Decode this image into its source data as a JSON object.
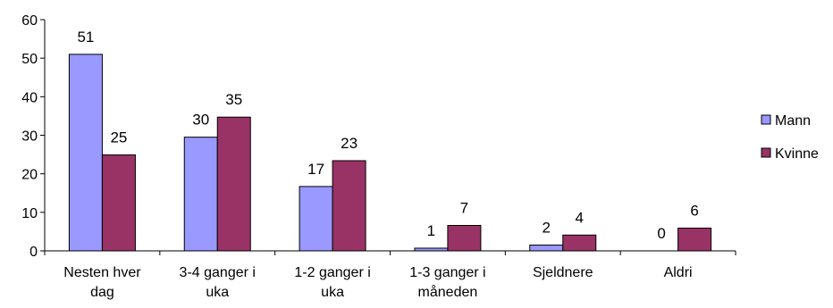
{
  "chart_data": {
    "type": "bar",
    "categories": [
      [
        "Nesten hver",
        "dag"
      ],
      [
        "3-4 ganger i",
        "uka"
      ],
      [
        "1-2 ganger i",
        "uka"
      ],
      [
        "1-3 ganger i",
        "måneden"
      ],
      [
        "Sjeldnere"
      ],
      [
        "Aldri"
      ]
    ],
    "series": [
      {
        "name": "Mann",
        "values": [
          51,
          30,
          17,
          1,
          2,
          0
        ],
        "plotted": [
          51,
          29.5,
          16.7,
          0.7,
          1.5,
          0
        ],
        "color": "#9999ff"
      },
      {
        "name": "Kvinne",
        "values": [
          25,
          35,
          23,
          7,
          4,
          6
        ],
        "plotted": [
          24.9,
          34.7,
          23.4,
          6.6,
          4.1,
          5.9
        ],
        "color": "#993366"
      }
    ],
    "ylim": [
      0,
      60
    ],
    "yticks": [
      0,
      10,
      20,
      30,
      40,
      50,
      60
    ],
    "grid": false,
    "legend_position": "right"
  }
}
